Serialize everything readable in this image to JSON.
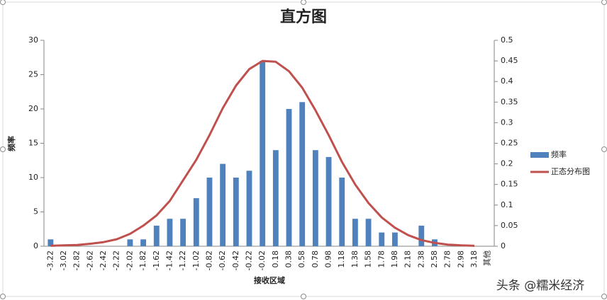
{
  "chart_data": {
    "type": "histogram",
    "title": "直方图",
    "xlabel": "接收区域",
    "ylabel": "频率",
    "watermark": "头条 @糯米经济",
    "categories": [
      "-3.22",
      "-3.02",
      "-2.82",
      "-2.62",
      "-2.42",
      "-2.22",
      "-2.02",
      "-1.82",
      "-1.62",
      "-1.42",
      "-1.22",
      "-1.02",
      "-0.82",
      "-0.62",
      "-0.42",
      "-0.22",
      "-0.02",
      "0.18",
      "0.38",
      "0.58",
      "0.78",
      "0.98",
      "1.18",
      "1.38",
      "1.58",
      "1.78",
      "1.98",
      "2.18",
      "2.38",
      "2.58",
      "2.78",
      "2.98",
      "3.18",
      "其他"
    ],
    "series": [
      {
        "name": "频率",
        "color": "#4f81bd",
        "kind": "bar",
        "values": [
          1,
          0,
          0,
          0,
          0,
          0,
          1,
          1,
          3,
          4,
          4,
          7,
          10,
          12,
          10,
          11,
          27,
          14,
          20,
          21,
          14,
          13,
          10,
          4,
          4,
          2,
          2,
          0,
          3,
          1,
          0,
          0,
          0,
          0
        ]
      },
      {
        "name": "正态分布图",
        "color": "#c0504d",
        "kind": "line",
        "axis": "y2",
        "values": [
          0.001,
          0.002,
          0.003,
          0.006,
          0.01,
          0.017,
          0.03,
          0.05,
          0.075,
          0.11,
          0.16,
          0.21,
          0.27,
          0.335,
          0.39,
          0.43,
          0.45,
          0.448,
          0.425,
          0.385,
          0.33,
          0.27,
          0.205,
          0.15,
          0.105,
          0.07,
          0.045,
          0.027,
          0.015,
          0.008,
          0.004,
          0.002,
          0.001,
          null
        ]
      }
    ],
    "ylim": [
      0,
      30
    ],
    "yticks": [
      0,
      5,
      10,
      15,
      20,
      25,
      30
    ],
    "y2lim": [
      0,
      0.5
    ],
    "y2ticks": [
      0,
      0.05,
      0.1,
      0.15,
      0.2,
      0.25,
      0.3,
      0.35,
      0.4,
      0.45,
      0.5
    ],
    "legend": "right"
  }
}
